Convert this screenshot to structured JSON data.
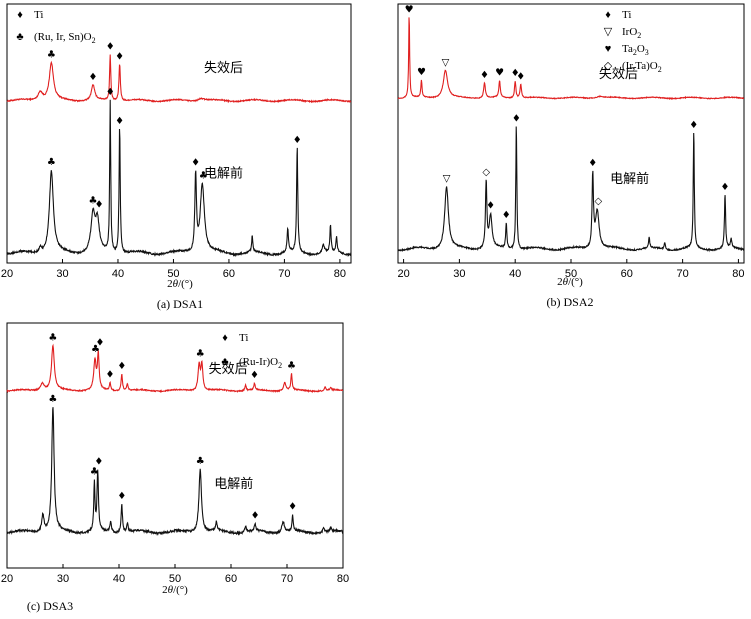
{
  "chart_data": [
    {
      "id": "p1",
      "type": "line",
      "caption": "(a) DSA1",
      "xlabel_pre": "2",
      "xlabel_theta": "θ",
      "xlabel_post": "/(°)",
      "xlim": [
        20,
        82
      ],
      "xticks": [
        "20",
        "30",
        "40",
        "50",
        "60",
        "70",
        "80"
      ],
      "legend": [
        {
          "symbol": "♦",
          "label": "Ti"
        },
        {
          "symbol": "♣",
          "label": "(Ru, Ir, Sn)O",
          "sub": "2"
        }
      ],
      "series": [
        {
          "name": "失效后",
          "color": "#e02020",
          "baseline": 0.1,
          "noise": 0.012,
          "peaks": [
            [
              26.0,
              0.2,
              1.0
            ],
            [
              28.0,
              0.85,
              0.9
            ],
            [
              35.5,
              0.35,
              0.7
            ],
            [
              38.6,
              1.05,
              0.25
            ],
            [
              40.3,
              0.85,
              0.3
            ],
            [
              55.0,
              0.06,
              1.5
            ]
          ]
        },
        {
          "name": "电解前",
          "color": "#111111",
          "baseline": 0.07,
          "noise": 0.016,
          "peaks": [
            [
              26.0,
              0.1,
              0.6
            ],
            [
              28.0,
              1.55,
              0.85
            ],
            [
              35.5,
              0.7,
              0.9
            ],
            [
              36.3,
              0.55,
              0.8
            ],
            [
              38.6,
              2.85,
              0.22
            ],
            [
              40.3,
              2.4,
              0.25
            ],
            [
              54.0,
              1.45,
              0.35
            ],
            [
              55.2,
              1.3,
              0.9
            ],
            [
              64.2,
              0.3,
              0.25
            ],
            [
              70.6,
              0.45,
              0.3
            ],
            [
              72.3,
              2.0,
              0.25
            ],
            [
              77.0,
              0.15,
              0.5
            ],
            [
              78.3,
              0.5,
              0.25
            ],
            [
              79.4,
              0.3,
              0.25
            ]
          ]
        }
      ],
      "labels": [
        {
          "text": "失效后",
          "series": 0,
          "x": 55.5,
          "dy": 0.75
        },
        {
          "text": "电解前",
          "series": 1,
          "x": 55.5,
          "dy": 1.5
        }
      ],
      "markers": [
        {
          "s": "♣",
          "series": 0,
          "x": 28.0
        },
        {
          "s": "♦",
          "series": 0,
          "x": 35.5
        },
        {
          "s": "♦",
          "series": 0,
          "x": 38.6
        },
        {
          "s": "♦",
          "series": 0,
          "x": 40.3
        },
        {
          "s": "♣",
          "series": 1,
          "x": 28.0
        },
        {
          "s": "♣",
          "series": 1,
          "x": 35.5
        },
        {
          "s": "♦",
          "series": 1,
          "x": 36.6
        },
        {
          "s": "♦",
          "series": 1,
          "x": 38.6
        },
        {
          "s": "♦",
          "series": 1,
          "x": 40.3
        },
        {
          "s": "♦",
          "series": 1,
          "x": 54.0
        },
        {
          "s": "♣",
          "series": 1,
          "x": 55.4
        },
        {
          "s": "♦",
          "series": 1,
          "x": 72.3
        }
      ]
    },
    {
      "id": "p2",
      "type": "line",
      "caption": "(b) DSA2",
      "xlabel_pre": "2",
      "xlabel_theta": "θ",
      "xlabel_post": "/(°)",
      "xlim": [
        19,
        81
      ],
      "xticks": [
        "20",
        "30",
        "40",
        "50",
        "60",
        "70",
        "80"
      ],
      "legend": [
        {
          "symbol": "♦",
          "label": "Ti"
        },
        {
          "symbol": "▽",
          "label": "IrO",
          "sub": "2"
        },
        {
          "symbol": "♥",
          "label": "Ta",
          "sub": "2",
          "tail": "O",
          "sub2": "3"
        },
        {
          "symbol": "◇",
          "label": "(Ir,Ta)O",
          "sub": "2"
        }
      ],
      "series": [
        {
          "name": "失效后",
          "color": "#e02020",
          "baseline": 0.1,
          "noise": 0.012,
          "peaks": [
            [
              21.0,
              2.7,
              0.2
            ],
            [
              23.2,
              0.55,
              0.25
            ],
            [
              27.5,
              0.9,
              0.9
            ],
            [
              34.5,
              0.5,
              0.35
            ],
            [
              37.2,
              0.55,
              0.3
            ],
            [
              40.0,
              0.55,
              0.3
            ],
            [
              41.0,
              0.45,
              0.3
            ],
            [
              55.2,
              0.06,
              1.5
            ]
          ]
        },
        {
          "name": "电解前",
          "color": "#111111",
          "baseline": 0.07,
          "noise": 0.016,
          "peaks": [
            [
              27.7,
              1.45,
              0.8
            ],
            [
              34.8,
              1.55,
              0.3
            ],
            [
              35.6,
              0.75,
              0.6
            ],
            [
              38.4,
              0.6,
              0.25
            ],
            [
              40.2,
              2.95,
              0.22
            ],
            [
              53.9,
              1.7,
              0.3
            ],
            [
              54.7,
              0.9,
              0.8
            ],
            [
              64.0,
              0.25,
              0.25
            ],
            [
              66.8,
              0.15,
              0.3
            ],
            [
              72.0,
              2.75,
              0.22
            ],
            [
              77.6,
              1.25,
              0.25
            ],
            [
              78.7,
              0.2,
              0.3
            ]
          ]
        }
      ],
      "labels": [
        {
          "text": "失效后",
          "series": 0,
          "x": 55.0,
          "dy": 0.75
        },
        {
          "text": "电解前",
          "series": 1,
          "x": 57.0,
          "dy": 1.6
        }
      ],
      "markers": [
        {
          "s": "♥",
          "series": 0,
          "x": 21.0
        },
        {
          "s": "♥",
          "series": 0,
          "x": 23.2
        },
        {
          "s": "▽",
          "series": 0,
          "x": 27.5
        },
        {
          "s": "♦",
          "series": 0,
          "x": 34.5
        },
        {
          "s": "♥",
          "series": 0,
          "x": 37.2
        },
        {
          "s": "♦",
          "series": 0,
          "x": 40.0
        },
        {
          "s": "♦",
          "series": 0,
          "x": 41.0
        },
        {
          "s": "▽",
          "series": 1,
          "x": 27.7
        },
        {
          "s": "◇",
          "series": 1,
          "x": 34.8
        },
        {
          "s": "♦",
          "series": 1,
          "x": 35.6
        },
        {
          "s": "♦",
          "series": 1,
          "x": 38.4
        },
        {
          "s": "♦",
          "series": 1,
          "x": 40.2
        },
        {
          "s": "♦",
          "series": 1,
          "x": 53.9
        },
        {
          "s": "◇",
          "series": 1,
          "x": 54.9
        },
        {
          "s": "♦",
          "series": 1,
          "x": 72.0
        },
        {
          "s": "♦",
          "series": 1,
          "x": 77.6
        }
      ]
    },
    {
      "id": "p3",
      "type": "line",
      "caption": "(c) DSA3",
      "xlabel_pre": "2",
      "xlabel_theta": "θ",
      "xlabel_post": "/(°)",
      "xlim": [
        20,
        80
      ],
      "xticks": [
        "20",
        "30",
        "40",
        "50",
        "60",
        "70",
        "80"
      ],
      "legend": [
        {
          "symbol": "♦",
          "label": "Ti"
        },
        {
          "symbol": "♣",
          "label": "(Ru-Ir)O",
          "sub": "2"
        }
      ],
      "series": [
        {
          "name": "失效后",
          "color": "#e02020",
          "baseline": 0.12,
          "noise": 0.014,
          "peaks": [
            [
              26.3,
              0.2,
              0.8
            ],
            [
              28.2,
              1.2,
              0.6
            ],
            [
              35.7,
              0.8,
              0.5
            ],
            [
              36.3,
              0.95,
              0.35
            ],
            [
              38.4,
              0.22,
              0.25
            ],
            [
              40.5,
              0.45,
              0.3
            ],
            [
              41.5,
              0.18,
              0.3
            ],
            [
              54.3,
              0.7,
              0.45
            ],
            [
              54.8,
              0.7,
              0.4
            ],
            [
              62.6,
              0.15,
              0.3
            ],
            [
              64.2,
              0.18,
              0.3
            ],
            [
              69.6,
              0.22,
              0.5
            ],
            [
              70.8,
              0.45,
              0.25
            ],
            [
              76.8,
              0.1,
              0.25
            ],
            [
              77.8,
              0.08,
              0.3
            ]
          ]
        },
        {
          "name": "电解前",
          "color": "#111111",
          "baseline": 0.25,
          "noise": 0.022,
          "peaks": [
            [
              26.4,
              0.4,
              0.5
            ],
            [
              28.2,
              2.85,
              0.5
            ],
            [
              35.6,
              1.1,
              0.25
            ],
            [
              36.2,
              1.35,
              0.3
            ],
            [
              38.5,
              0.25,
              0.3
            ],
            [
              40.5,
              0.65,
              0.3
            ],
            [
              41.5,
              0.2,
              0.3
            ],
            [
              54.5,
              1.45,
              0.55
            ],
            [
              57.4,
              0.2,
              0.3
            ],
            [
              62.6,
              0.14,
              0.35
            ],
            [
              64.3,
              0.16,
              0.3
            ],
            [
              69.3,
              0.25,
              0.55
            ],
            [
              71.0,
              0.35,
              0.25
            ],
            [
              76.5,
              0.12,
              0.3
            ],
            [
              77.8,
              0.08,
              0.3
            ]
          ]
        }
      ],
      "labels": [
        {
          "text": "失效后",
          "series": 0,
          "x": 56.0,
          "dy": 0.6
        },
        {
          "text": "电解前",
          "series": 1,
          "x": 57.0,
          "dy": 1.25
        }
      ],
      "markers": [
        {
          "s": "♣",
          "series": 0,
          "x": 28.2
        },
        {
          "s": "♣",
          "series": 0,
          "x": 35.8
        },
        {
          "s": "♦",
          "series": 0,
          "x": 36.6
        },
        {
          "s": "♦",
          "series": 0,
          "x": 38.4
        },
        {
          "s": "♦",
          "series": 0,
          "x": 40.5
        },
        {
          "s": "♣",
          "series": 0,
          "x": 54.5
        },
        {
          "s": "♦",
          "series": 0,
          "x": 64.2
        },
        {
          "s": "♣",
          "series": 0,
          "x": 70.8
        },
        {
          "s": "♣",
          "series": 1,
          "x": 28.2
        },
        {
          "s": "♣",
          "series": 1,
          "x": 35.6
        },
        {
          "s": "♦",
          "series": 1,
          "x": 36.4
        },
        {
          "s": "♦",
          "series": 1,
          "x": 40.5
        },
        {
          "s": "♣",
          "series": 1,
          "x": 54.5
        },
        {
          "s": "♦",
          "series": 1,
          "x": 64.3
        },
        {
          "s": "♦",
          "series": 1,
          "x": 71.0
        }
      ]
    }
  ]
}
